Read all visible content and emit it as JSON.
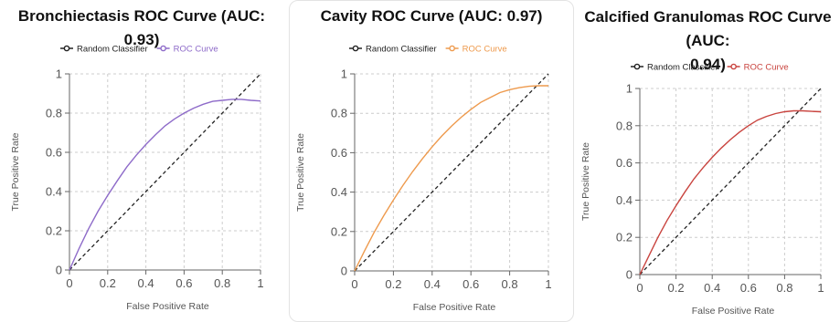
{
  "colors": {
    "random": "#222222",
    "grid": "#cccccc",
    "axis": "#666666"
  },
  "chart_data": [
    {
      "type": "line",
      "title": "Bronchiectasis ROC Curve (AUC: 0.93)",
      "xlabel": "False Positive Rate",
      "ylabel": "True Positive Rate",
      "xlim": [
        0,
        1
      ],
      "ylim": [
        0,
        1
      ],
      "xticks": [
        "0",
        "0.2",
        "0.4",
        "0.6",
        "0.8",
        "1"
      ],
      "yticks": [
        "0",
        "0.2",
        "0.4",
        "0.6",
        "0.8",
        "1"
      ],
      "grid": true,
      "legend_position": "top",
      "legend": [
        "Random Classifier",
        "ROC Curve"
      ],
      "series": [
        {
          "name": "Random Classifier",
          "color": "#222222",
          "dashed": true,
          "x": [
            0,
            1
          ],
          "y": [
            0,
            1
          ]
        },
        {
          "name": "ROC Curve",
          "color": "#8e6bc9",
          "dashed": false,
          "x": [
            0,
            0.05,
            0.1,
            0.15,
            0.2,
            0.25,
            0.3,
            0.35,
            0.4,
            0.45,
            0.5,
            0.55,
            0.6,
            0.65,
            0.7,
            0.75,
            0.8,
            0.85,
            0.9,
            0.95,
            1
          ],
          "y": [
            0,
            0.11,
            0.21,
            0.3,
            0.38,
            0.455,
            0.525,
            0.585,
            0.64,
            0.69,
            0.735,
            0.77,
            0.8,
            0.825,
            0.845,
            0.86,
            0.865,
            0.87,
            0.87,
            0.865,
            0.862
          ]
        }
      ]
    },
    {
      "type": "line",
      "title": "Cavity ROC Curve (AUC: 0.97)",
      "xlabel": "False Positive Rate",
      "ylabel": "True Positive Rate",
      "xlim": [
        0,
        1
      ],
      "ylim": [
        0,
        1
      ],
      "xticks": [
        "0",
        "0.2",
        "0.4",
        "0.6",
        "0.8",
        "1"
      ],
      "yticks": [
        "0",
        "0.2",
        "0.4",
        "0.6",
        "0.8",
        "1"
      ],
      "grid": true,
      "legend_position": "top",
      "legend": [
        "Random Classifier",
        "ROC Curve"
      ],
      "series": [
        {
          "name": "Random Classifier",
          "color": "#222222",
          "dashed": true,
          "x": [
            0,
            1
          ],
          "y": [
            0,
            1
          ]
        },
        {
          "name": "ROC Curve",
          "color": "#ee9a4d",
          "dashed": false,
          "x": [
            0,
            0.05,
            0.1,
            0.15,
            0.2,
            0.25,
            0.3,
            0.35,
            0.4,
            0.45,
            0.5,
            0.55,
            0.6,
            0.65,
            0.7,
            0.75,
            0.8,
            0.85,
            0.9,
            0.95,
            1
          ],
          "y": [
            0,
            0.1,
            0.195,
            0.28,
            0.36,
            0.435,
            0.505,
            0.57,
            0.63,
            0.685,
            0.735,
            0.78,
            0.82,
            0.855,
            0.88,
            0.905,
            0.92,
            0.93,
            0.937,
            0.94,
            0.94
          ]
        }
      ]
    },
    {
      "type": "line",
      "title": "Calcified Granulomas ROC Curve (AUC: 0.94)",
      "xlabel": "False Positive Rate",
      "ylabel": "True Positive Rate",
      "xlim": [
        0,
        1
      ],
      "ylim": [
        0,
        1
      ],
      "xticks": [
        "0",
        "0.2",
        "0.4",
        "0.6",
        "0.8",
        "1"
      ],
      "yticks": [
        "0",
        "0.2",
        "0.4",
        "0.6",
        "0.8",
        "1"
      ],
      "grid": true,
      "legend_position": "top",
      "legend": [
        "Random Classifier",
        "ROC Curve"
      ],
      "series": [
        {
          "name": "Random Classifier",
          "color": "#222222",
          "dashed": true,
          "x": [
            0,
            1
          ],
          "y": [
            0,
            1
          ]
        },
        {
          "name": "ROC Curve",
          "color": "#c9443f",
          "dashed": false,
          "x": [
            0,
            0.05,
            0.1,
            0.15,
            0.2,
            0.25,
            0.3,
            0.35,
            0.4,
            0.45,
            0.5,
            0.55,
            0.6,
            0.65,
            0.7,
            0.75,
            0.8,
            0.85,
            0.9,
            0.95,
            1
          ],
          "y": [
            0,
            0.1,
            0.2,
            0.29,
            0.37,
            0.445,
            0.515,
            0.575,
            0.63,
            0.68,
            0.725,
            0.765,
            0.8,
            0.83,
            0.85,
            0.865,
            0.875,
            0.88,
            0.88,
            0.877,
            0.875
          ]
        }
      ]
    }
  ]
}
